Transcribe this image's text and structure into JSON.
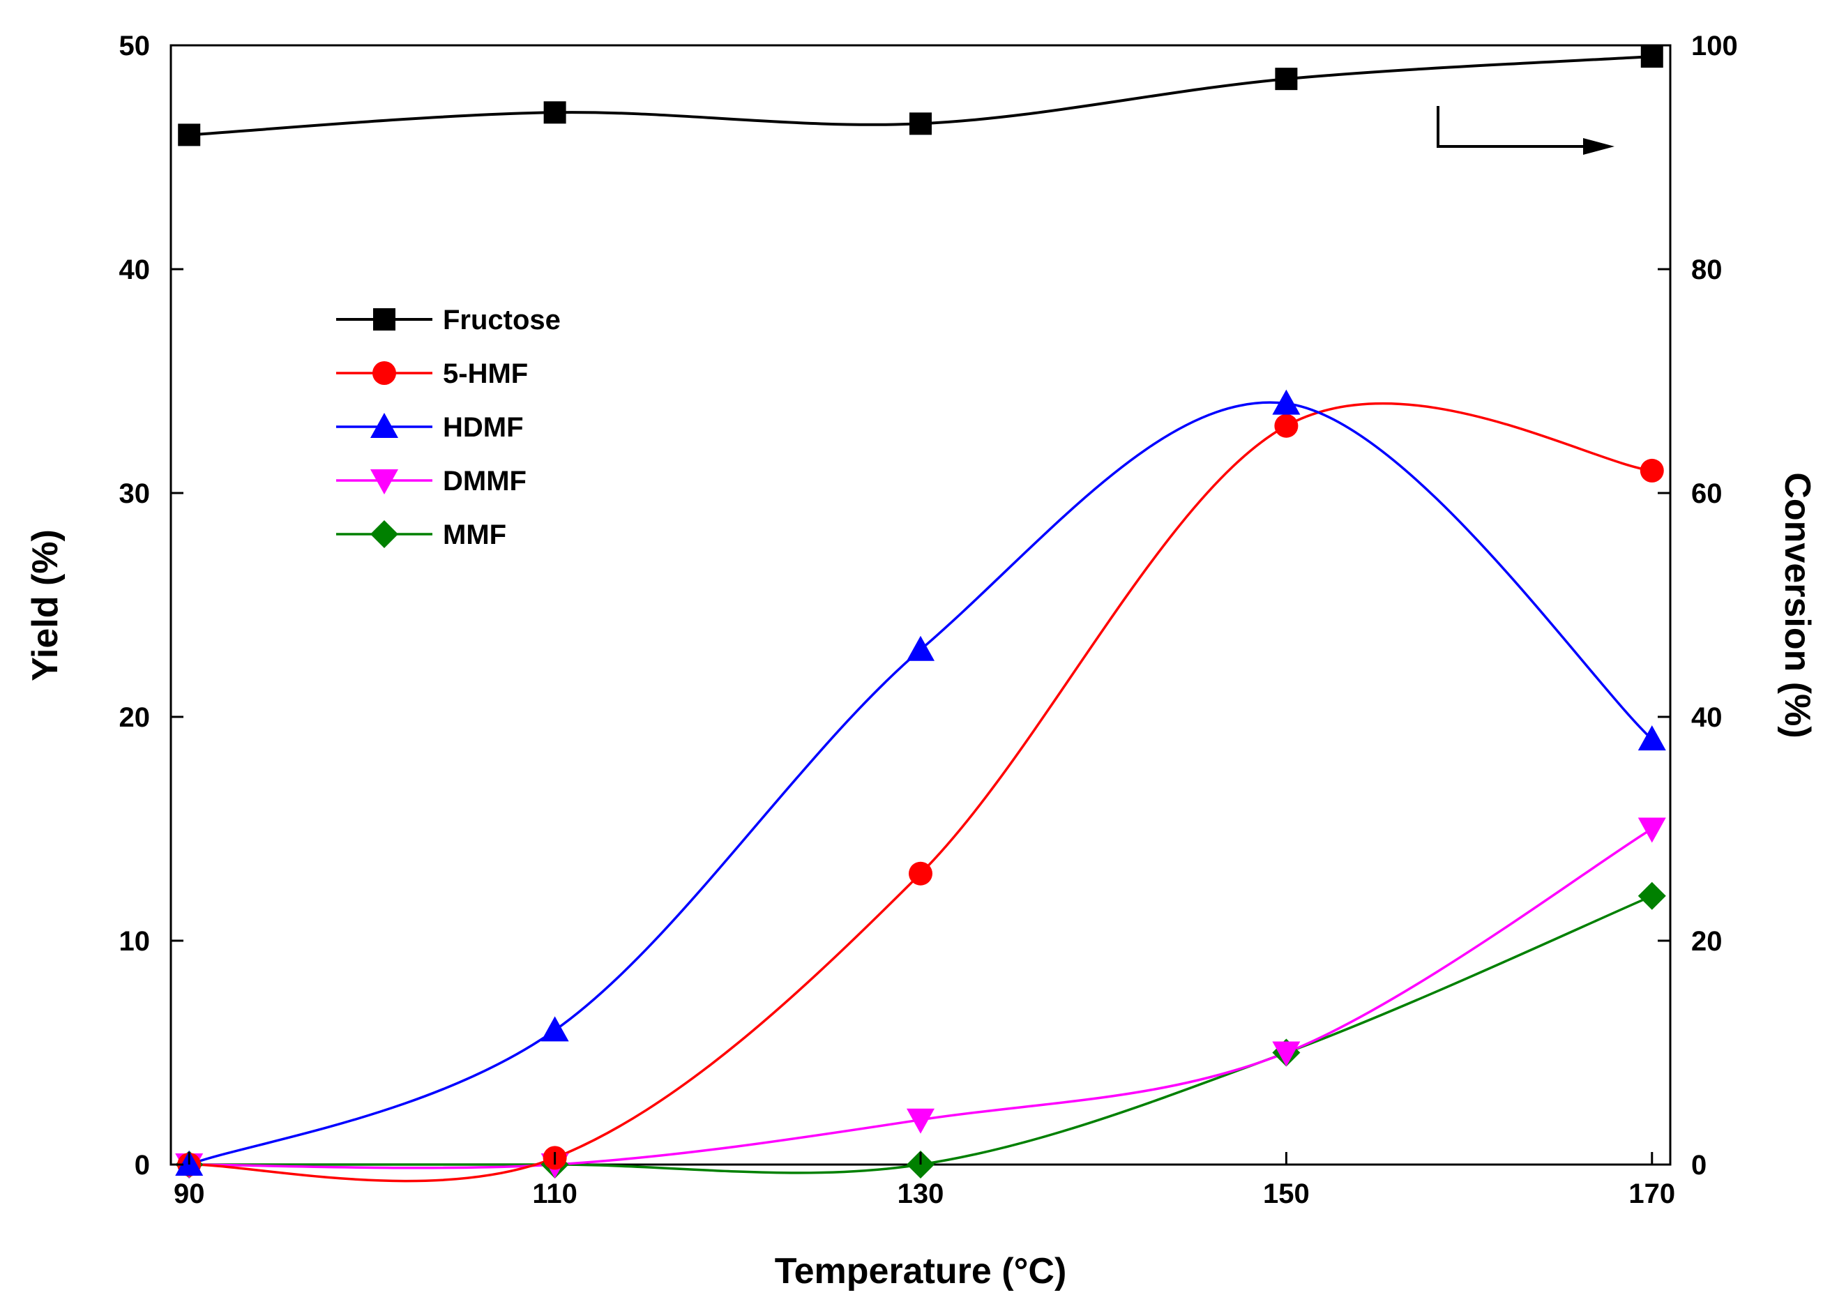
{
  "chart_data": {
    "type": "line",
    "title": "",
    "xlabel": "Temperature (°C)",
    "ylabel": "Yield (%)",
    "y2label": "Conversion (%)",
    "x": [
      90,
      110,
      130,
      150,
      170
    ],
    "x_tick_labels": [
      "90",
      "110",
      "130",
      "150",
      "170"
    ],
    "xlim": [
      89,
      171
    ],
    "ylim": [
      0,
      50
    ],
    "y2lim": [
      0,
      100
    ],
    "y_ticks": [
      "0",
      "10",
      "20",
      "30",
      "40",
      "50"
    ],
    "y2_ticks": [
      "0",
      "20",
      "40",
      "60",
      "80",
      "100"
    ],
    "grid": false,
    "legend_position": "upper-left",
    "annotation": "arrow pointing to right axis (Fructose on Conversion axis)",
    "series": [
      {
        "name": "Fructose",
        "axis": "right",
        "values": [
          92,
          94,
          93,
          97,
          99
        ],
        "color": "#000000",
        "marker": "square"
      },
      {
        "name": "5-HMF",
        "axis": "left",
        "values": [
          0,
          0.3,
          13,
          33,
          31
        ],
        "color": "#ff0000",
        "marker": "circle"
      },
      {
        "name": "HDMF",
        "axis": "left",
        "values": [
          0,
          6,
          23,
          34,
          19
        ],
        "color": "#0000ff",
        "marker": "triangle-up"
      },
      {
        "name": "DMMF",
        "axis": "left",
        "values": [
          0,
          0,
          2,
          5,
          15
        ],
        "color": "#ff00ff",
        "marker": "triangle-down"
      },
      {
        "name": "MMF",
        "axis": "left",
        "values": [
          0,
          0,
          0,
          5,
          12
        ],
        "color": "#008000",
        "marker": "diamond"
      }
    ]
  }
}
